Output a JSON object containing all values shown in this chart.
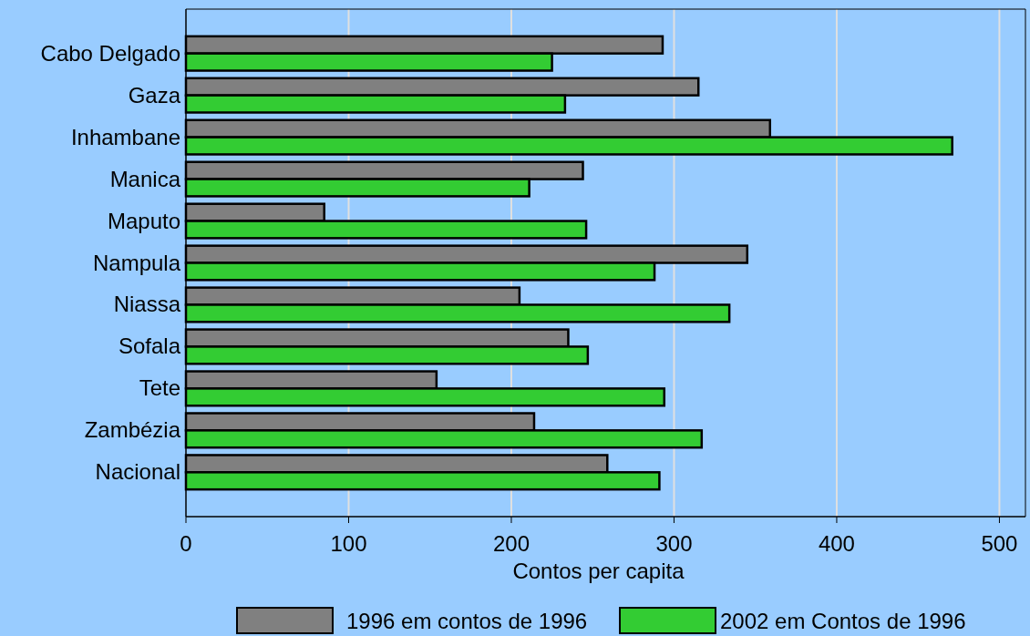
{
  "chart_data": {
    "type": "bar",
    "orientation": "horizontal",
    "xlabel": "Contos per capita",
    "categories": [
      "Cabo Delgado",
      "Gaza",
      "Inhambane",
      "Manica",
      "Maputo",
      "Nampula",
      "Niassa",
      "Sofala",
      "Tete",
      "Zambézia",
      "Nacional"
    ],
    "series": [
      {
        "name": "1996 em contos de 1996",
        "color": "#808080",
        "values": [
          293,
          315,
          359,
          244,
          85,
          345,
          205,
          235,
          154,
          214,
          259
        ]
      },
      {
        "name": "2002 em Contos de 1996",
        "color": "#33cc33",
        "values": [
          225,
          233,
          471,
          211,
          246,
          288,
          334,
          247,
          294,
          317,
          291
        ]
      }
    ],
    "xlim": [
      0,
      516
    ],
    "xticks": [
      0,
      100,
      200,
      300,
      400,
      500
    ],
    "grid": "x",
    "legend": "bottom"
  }
}
